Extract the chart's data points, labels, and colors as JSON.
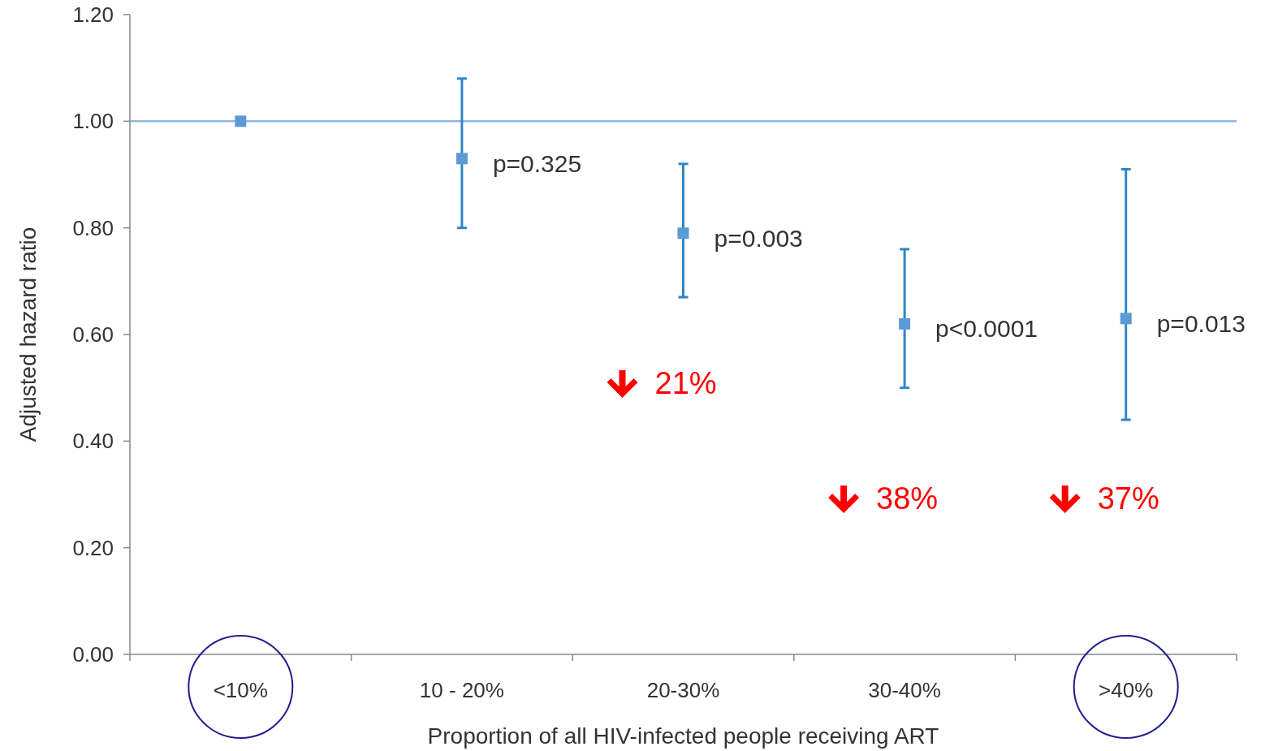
{
  "chart_data": {
    "type": "scatter",
    "xlabel": "Proportion of all HIV-infected people receiving ART",
    "ylabel": "Adjusted hazard ratio",
    "categories": [
      "<10%",
      "10 - 20%",
      "20-30%",
      "30-40%",
      ">40%"
    ],
    "series": [
      {
        "color": "#5b9bd5",
        "values": [
          1.0,
          0.93,
          0.79,
          0.62,
          0.63
        ],
        "errors": [
          null,
          [
            0.8,
            1.08
          ],
          [
            0.67,
            0.92
          ],
          [
            0.5,
            0.76
          ],
          [
            0.44,
            0.91
          ]
        ]
      }
    ],
    "marker": "square",
    "ylim": [
      0,
      1.2
    ],
    "yticks": [
      {
        "value": 0,
        "label": "0.00"
      },
      {
        "value": 0.2,
        "label": "0.20"
      },
      {
        "value": 0.4,
        "label": "0.40"
      },
      {
        "value": 0.6,
        "label": "0.60"
      },
      {
        "value": 0.8,
        "label": "0.80"
      },
      {
        "value": 1,
        "label": "1.00"
      },
      {
        "value": 1.2,
        "label": "1.20"
      }
    ],
    "ref_lines": [
      {
        "axis": "y",
        "value": 1,
        "color": "#8fb9e0"
      }
    ],
    "annotations": [
      {
        "text": "p=0.325",
        "x": "10 - 20%",
        "y": 0.93
      },
      {
        "text": "p=0.003",
        "x": "20-30%",
        "y": 0.79
      },
      {
        "text": "p<0.0001",
        "x": "30-40%",
        "y": 0.62
      },
      {
        "text": "p=0.013",
        "x": ">40%",
        "y": 0.63
      },
      "21%",
      "38%",
      "37%"
    ]
  }
}
